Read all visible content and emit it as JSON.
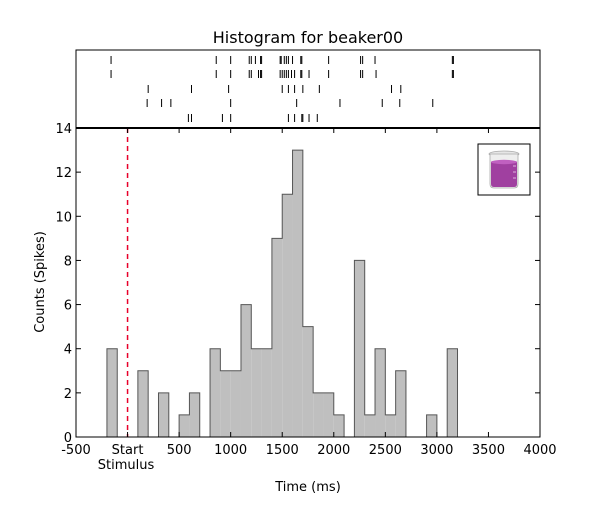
{
  "chart_data": {
    "type": "bar",
    "title": "Histogram for beaker00",
    "xlabel": "Time (ms)",
    "ylabel": "Counts (Spikes)",
    "xlim": [
      -500,
      4000
    ],
    "ylim": [
      0,
      14
    ],
    "x_ticks": [
      -500,
      0,
      500,
      1000,
      1500,
      2000,
      2500,
      3000,
      3500,
      4000
    ],
    "x_tick_labels": [
      "-500",
      "Start",
      "500",
      "1000",
      "1500",
      "2000",
      "2500",
      "3000",
      "3500",
      "4000"
    ],
    "y_ticks": [
      0,
      2,
      4,
      6,
      8,
      10,
      12,
      14
    ],
    "stimulus_label": "Stimulus",
    "stimulus_time": 0,
    "bin_width": 100,
    "bar_color": "#bfbfbf",
    "bar_edge_color": "#555555",
    "stimulus_line_color": "#e8002a",
    "bins": [
      {
        "start": -200,
        "count": 4
      },
      {
        "start": -100,
        "count": 0
      },
      {
        "start": 0,
        "count": 0
      },
      {
        "start": 100,
        "count": 3
      },
      {
        "start": 200,
        "count": 0
      },
      {
        "start": 300,
        "count": 2
      },
      {
        "start": 400,
        "count": 0
      },
      {
        "start": 500,
        "count": 1
      },
      {
        "start": 600,
        "count": 2
      },
      {
        "start": 700,
        "count": 0
      },
      {
        "start": 800,
        "count": 4
      },
      {
        "start": 900,
        "count": 3
      },
      {
        "start": 1000,
        "count": 3
      },
      {
        "start": 1100,
        "count": 6
      },
      {
        "start": 1200,
        "count": 4
      },
      {
        "start": 1300,
        "count": 4
      },
      {
        "start": 1400,
        "count": 9
      },
      {
        "start": 1500,
        "count": 11
      },
      {
        "start": 1600,
        "count": 13
      },
      {
        "start": 1700,
        "count": 5
      },
      {
        "start": 1800,
        "count": 2
      },
      {
        "start": 1900,
        "count": 2
      },
      {
        "start": 2000,
        "count": 1
      },
      {
        "start": 2100,
        "count": 0
      },
      {
        "start": 2200,
        "count": 8
      },
      {
        "start": 2300,
        "count": 1
      },
      {
        "start": 2400,
        "count": 4
      },
      {
        "start": 2500,
        "count": 1
      },
      {
        "start": 2600,
        "count": 3
      },
      {
        "start": 2700,
        "count": 0
      },
      {
        "start": 2800,
        "count": 0
      },
      {
        "start": 2900,
        "count": 1
      },
      {
        "start": 3000,
        "count": 0
      },
      {
        "start": 3100,
        "count": 4
      }
    ],
    "raster_trials": [
      [
        -160,
        860,
        1000,
        1180,
        1200,
        1240,
        1290,
        1300,
        1480,
        1490,
        1520,
        1540,
        1560,
        1600,
        1680,
        1690,
        1950,
        2260,
        2280,
        2400,
        3150,
        3160
      ],
      [
        -160,
        860,
        1000,
        1180,
        1200,
        1270,
        1290,
        1300,
        1480,
        1500,
        1520,
        1540,
        1560,
        1590,
        1620,
        1680,
        1690,
        1760,
        1950,
        2260,
        2280,
        2410,
        3150,
        3160
      ],
      [
        200,
        620,
        980,
        1500,
        1560,
        1620,
        1700,
        1860,
        2560,
        2650
      ],
      [
        190,
        330,
        420,
        1000,
        1640,
        2060,
        2470,
        2640,
        2960
      ],
      [
        590,
        620,
        920,
        1000,
        1560,
        1620,
        1690,
        1700,
        1760,
        1840
      ]
    ],
    "legend": {
      "placement": "top-right",
      "icon": "beaker-icon",
      "icon_color": "#a040a0"
    },
    "grid": false
  }
}
